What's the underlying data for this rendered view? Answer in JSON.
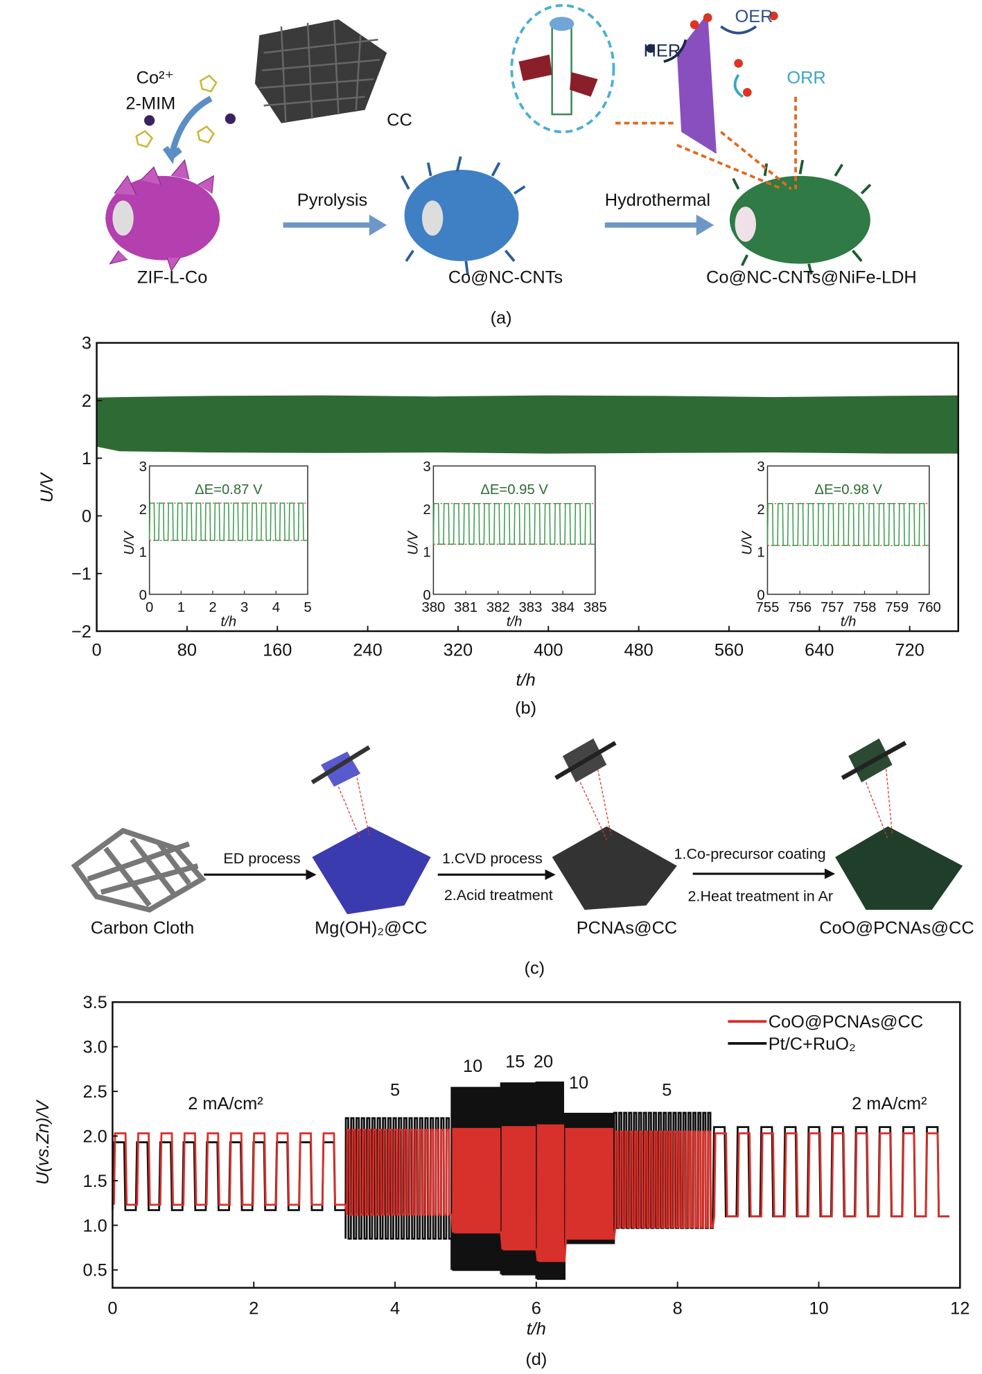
{
  "panel_a": {
    "caption": "(a)",
    "reagents": [
      "Co²⁺",
      "2-MIM"
    ],
    "substrate": "CC",
    "steps": [
      "Pyrolysis",
      "Hydrothermal"
    ],
    "products": [
      "ZIF-L-Co",
      "Co@NC-CNTs",
      "Co@NC-CNTs@NiFe-LDH"
    ],
    "reactions": [
      "HER",
      "OER",
      "ORR"
    ],
    "colors": {
      "zif": "#b43fae",
      "cnt": "#3f7fc4",
      "ldh": "#2f7a45",
      "cc": "#3a3a3a",
      "her": "#1b2a4a",
      "oer": "#2e4f8a",
      "orr": "#3aa6c4",
      "triangle": "#8a4fbf"
    }
  },
  "panel_c": {
    "caption": "(c)",
    "materials": [
      "Carbon Cloth",
      "Mg(OH)₂@CC",
      "PCNAs@CC",
      "CoO@PCNAs@CC"
    ],
    "step1": [
      "ED process"
    ],
    "step2": [
      "1.CVD process",
      "2.Acid treatment"
    ],
    "step3": [
      "1.Co-precursor coating",
      "2.Heat treatment in Ar"
    ],
    "colors": {
      "cloth": "#777777",
      "mgoh": "#3b3bb0",
      "pcna": "#333333",
      "coo": "#1f3f2a"
    }
  },
  "chart_data": [
    {
      "panel": "(b)",
      "type": "line",
      "xlabel": "t/h",
      "ylabel": "U/V",
      "xlim": [
        0,
        763
      ],
      "ylim": [
        -2,
        3
      ],
      "xticks": [
        0,
        80,
        160,
        240,
        320,
        400,
        480,
        560,
        640,
        720
      ],
      "yticks": [
        3,
        2,
        1,
        0,
        -1,
        -2
      ],
      "ytick_labels": [
        "3",
        "2",
        "1",
        "0",
        "−1",
        "−2"
      ],
      "series_color": "#2e6b34",
      "envelope": {
        "t": [
          0,
          20,
          100,
          200,
          300,
          400,
          500,
          600,
          700,
          763
        ],
        "upper": [
          2.05,
          2.06,
          2.08,
          2.09,
          2.07,
          2.09,
          2.08,
          2.06,
          2.08,
          2.09
        ],
        "lower": [
          1.2,
          1.12,
          1.1,
          1.09,
          1.1,
          1.08,
          1.09,
          1.1,
          1.08,
          1.08
        ]
      },
      "insets": [
        {
          "xlim": [
            0,
            5
          ],
          "xticks": [
            0,
            1,
            2,
            3,
            4,
            5
          ],
          "ylim": [
            0,
            3
          ],
          "yticks": [
            0,
            1,
            2,
            3
          ],
          "xlabel": "t/h",
          "ylabel": "U/V",
          "annotation": "ΔE=0.87 V",
          "charge_V": 2.13,
          "discharge_V": 1.26,
          "cycles": 17
        },
        {
          "xlim": [
            380,
            385
          ],
          "xticks": [
            380,
            381,
            382,
            383,
            384,
            385
          ],
          "ylim": [
            0,
            3
          ],
          "yticks": [
            0,
            1,
            2,
            3
          ],
          "xlabel": "t/h",
          "ylabel": "U/V",
          "annotation": "ΔE=0.95 V",
          "charge_V": 2.12,
          "discharge_V": 1.17,
          "cycles": 16
        },
        {
          "xlim": [
            755,
            760
          ],
          "xticks": [
            755,
            756,
            757,
            758,
            759,
            760
          ],
          "ylim": [
            0,
            3
          ],
          "yticks": [
            0,
            1,
            2,
            3
          ],
          "xlabel": "t/h",
          "ylabel": "U/V",
          "annotation": "ΔE=0.98 V",
          "charge_V": 2.12,
          "discharge_V": 1.14,
          "cycles": 16
        }
      ],
      "inset_colors": {
        "trace": "#3a9a4a",
        "ref": "#d83a3a",
        "annotation": "#2e6b34"
      }
    },
    {
      "panel": "(d)",
      "type": "line",
      "xlabel": "t/h",
      "ylabel": "U(vs.Zn)/V",
      "xlim": [
        0,
        12
      ],
      "ylim": [
        0.3,
        3.5
      ],
      "xticks": [
        0,
        2,
        4,
        6,
        8,
        10,
        12
      ],
      "yticks": [
        0.5,
        1.0,
        1.5,
        2.0,
        2.5,
        3.0,
        3.5
      ],
      "ytick_labels": [
        "0.5",
        "1.0",
        "1.5",
        "2.0",
        "2.5",
        "3.0",
        "3.5"
      ],
      "legend": "top-right",
      "annotations": [
        {
          "text": "2 mA/cm²",
          "t": 1.6,
          "U": 2.3
        },
        {
          "text": "5",
          "t": 4.0,
          "U": 2.45
        },
        {
          "text": "10",
          "t": 5.1,
          "U": 2.72
        },
        {
          "text": "15",
          "t": 5.7,
          "U": 2.77
        },
        {
          "text": "20",
          "t": 6.1,
          "U": 2.77
        },
        {
          "text": "10",
          "t": 6.6,
          "U": 2.53
        },
        {
          "text": "5",
          "t": 7.85,
          "U": 2.45
        },
        {
          "text": "2 mA/cm²",
          "t": 11.0,
          "U": 2.3
        }
      ],
      "segments": [
        {
          "current_mA_cm2": 2,
          "t": [
            0,
            3.3
          ],
          "cycles": 10
        },
        {
          "current_mA_cm2": 5,
          "t": [
            3.3,
            4.8
          ],
          "cycles": 20
        },
        {
          "current_mA_cm2": 10,
          "t": [
            4.8,
            5.5
          ],
          "cycles": 16
        },
        {
          "current_mA_cm2": 15,
          "t": [
            5.5,
            6.0
          ],
          "cycles": 12
        },
        {
          "current_mA_cm2": 20,
          "t": [
            6.0,
            6.4
          ],
          "cycles": 10
        },
        {
          "current_mA_cm2": 10,
          "t": [
            6.4,
            7.1
          ],
          "cycles": 16
        },
        {
          "current_mA_cm2": 5,
          "t": [
            7.1,
            8.5
          ],
          "cycles": 20
        },
        {
          "current_mA_cm2": 2,
          "t": [
            8.5,
            11.85
          ],
          "cycles": 10
        }
      ],
      "series": [
        {
          "name": "Pt/C+RuO₂",
          "color": "#111111",
          "charge_V": [
            1.93,
            2.2,
            2.54,
            2.59,
            2.6,
            2.25,
            2.26,
            2.1
          ],
          "discharge_V": [
            1.17,
            0.85,
            0.5,
            0.45,
            0.4,
            0.8,
            0.97,
            1.1
          ]
        },
        {
          "name": "CoO@PCNAs@CC",
          "color": "#d8302a",
          "charge_V": [
            2.03,
            2.07,
            2.08,
            2.1,
            2.12,
            2.08,
            2.05,
            2.03
          ],
          "discharge_V": [
            1.23,
            1.12,
            0.92,
            0.73,
            0.6,
            0.85,
            0.98,
            1.1
          ]
        }
      ],
      "legend_order": [
        "CoO@PCNAs@CC",
        "Pt/C+RuO₂"
      ]
    }
  ]
}
